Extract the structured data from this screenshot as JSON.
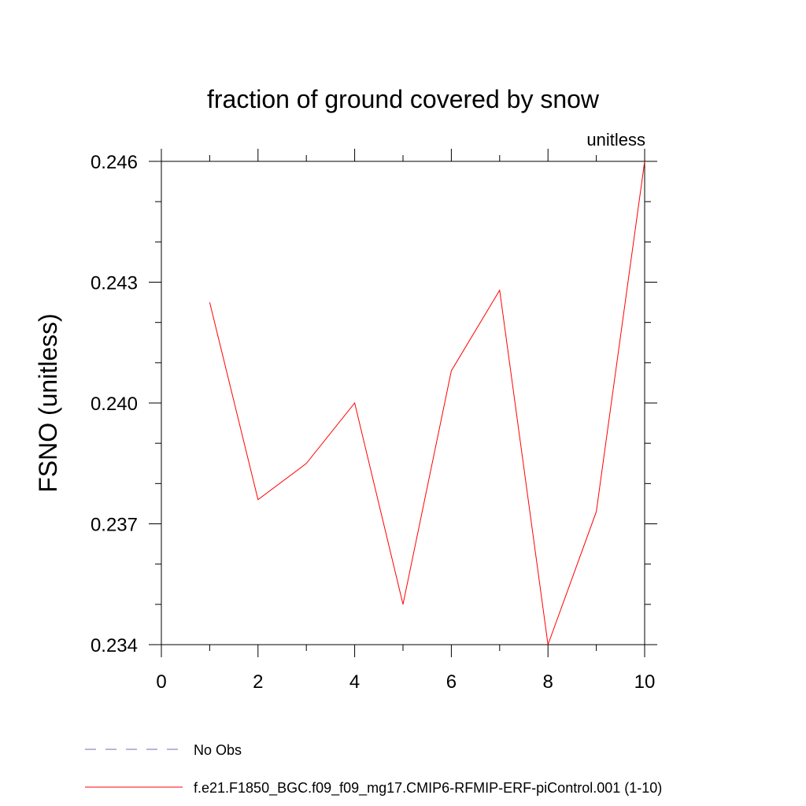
{
  "chart_data": {
    "type": "line",
    "title": "fraction of ground covered by snow",
    "units": "unitless",
    "ylabel": "FSNO  (unitless)",
    "xlabel": "",
    "xlim": [
      0,
      10
    ],
    "ylim": [
      0.234,
      0.246
    ],
    "x_ticks": [
      0,
      2,
      4,
      6,
      8,
      10
    ],
    "x_tick_labels": [
      "0",
      "2",
      "4",
      "6",
      "8",
      "10"
    ],
    "x_minor_ticks": [
      1,
      3,
      5,
      7,
      9
    ],
    "y_ticks": [
      0.234,
      0.237,
      0.24,
      0.243,
      0.246
    ],
    "y_tick_labels": [
      "0.234",
      "0.237",
      "0.240",
      "0.243",
      "0.246"
    ],
    "y_minor_ticks": [
      0.235,
      0.236,
      0.238,
      0.239,
      0.241,
      0.242,
      0.244,
      0.245
    ],
    "grid": false,
    "series": [
      {
        "name": "f.e21.F1850_BGC.f09_f09_mg17.CMIP6-RFMIP-ERF-piControl.001 (1-10)",
        "color": "#ff0000",
        "dash": "solid",
        "x": [
          1,
          2,
          3,
          4,
          5,
          6,
          7,
          8,
          9,
          10
        ],
        "y": [
          0.2425,
          0.2376,
          0.2385,
          0.24,
          0.235,
          0.2408,
          0.2428,
          0.234,
          0.2373,
          0.246
        ]
      }
    ],
    "legend": {
      "placement": "bottom",
      "entries": [
        {
          "label": "No Obs",
          "color": "#7b68b0",
          "dash": "dashed"
        },
        {
          "label": "f.e21.F1850_BGC.f09_f09_mg17.CMIP6-RFMIP-ERF-piControl.001 (1-10)",
          "color": "#ff0000",
          "dash": "solid"
        }
      ]
    }
  }
}
